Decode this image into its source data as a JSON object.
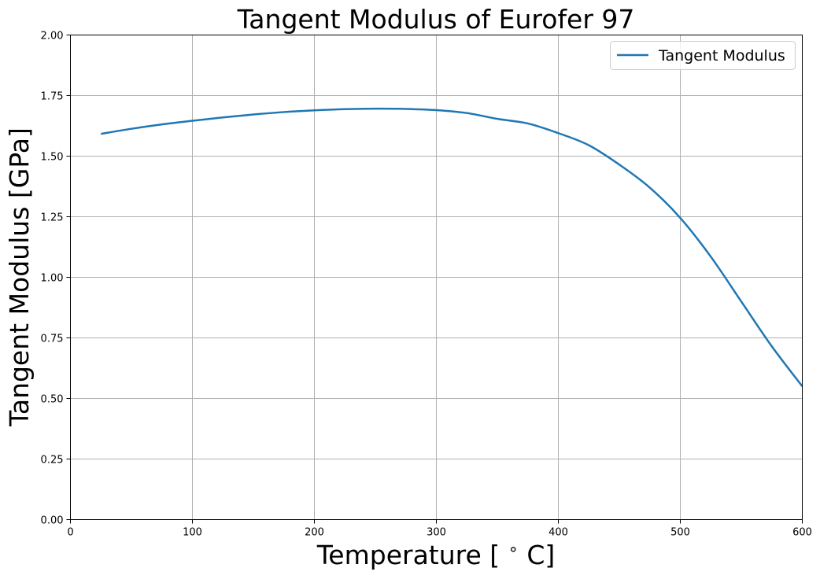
{
  "chart_data": {
    "type": "line",
    "title": "Tangent Modulus of Eurofer 97",
    "xlabel": "Temperature [$^\\circ$C]",
    "xlabel_parts": [
      "Temperature [",
      "∘",
      "C]"
    ],
    "ylabel": "Tangent Modulus [GPa]",
    "xlim": [
      0,
      600
    ],
    "ylim": [
      0,
      2.0
    ],
    "xticks": [
      0,
      100,
      200,
      300,
      400,
      500,
      600
    ],
    "xtick_labels": [
      "0",
      "100",
      "200",
      "300",
      "400",
      "500",
      "600"
    ],
    "yticks": [
      0,
      0.25,
      0.5,
      0.75,
      1.0,
      1.25,
      1.5,
      1.75,
      2.0
    ],
    "ytick_labels": [
      "0.00",
      "0.25",
      "0.50",
      "0.75",
      "1.00",
      "1.25",
      "1.50",
      "1.75",
      "2.00"
    ],
    "grid": true,
    "legend_position": "top-right",
    "series": [
      {
        "name": "Tangent Modulus",
        "color": "#1f77b4",
        "x": [
          25,
          50,
          75,
          100,
          125,
          150,
          175,
          200,
          225,
          250,
          275,
          300,
          325,
          350,
          375,
          400,
          425,
          450,
          475,
          500,
          525,
          550,
          575,
          600
        ],
        "y": [
          1.592,
          1.613,
          1.631,
          1.646,
          1.66,
          1.672,
          1.682,
          1.689,
          1.694,
          1.696,
          1.695,
          1.69,
          1.678,
          1.654,
          1.635,
          1.595,
          1.545,
          1.465,
          1.37,
          1.245,
          1.085,
          0.9,
          0.715,
          0.55
        ]
      }
    ]
  }
}
